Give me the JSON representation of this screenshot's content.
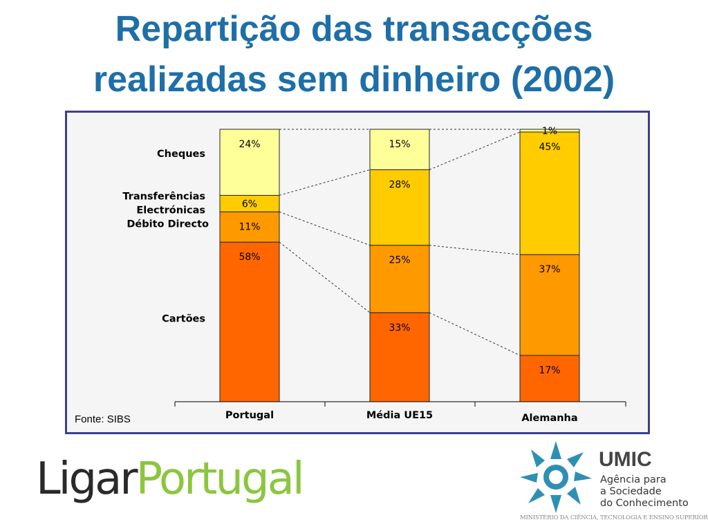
{
  "title": {
    "line1": "Repartição das transacções",
    "line2": "realizadas sem dinheiro (2002)"
  },
  "source": "Fonte: SIBS",
  "chart_data": {
    "type": "bar",
    "stacked": true,
    "normalized_percent": true,
    "categories": [
      "Portugal",
      "Média UE15",
      "Alemanha"
    ],
    "series": [
      {
        "name": "Cartões",
        "values": [
          58,
          33,
          17
        ],
        "labels": [
          "58%",
          "33%",
          "17%"
        ],
        "color": "#ff6600"
      },
      {
        "name": "Débito Directo",
        "values": [
          11,
          25,
          37
        ],
        "labels": [
          "11%",
          "25%",
          "37%"
        ],
        "color": "#ff9900"
      },
      {
        "name": "Transferências Electrónicas",
        "label_lines": [
          "Transferências",
          "Electrónicas"
        ],
        "values": [
          6,
          28,
          45
        ],
        "labels": [
          "6%",
          "28%",
          "45%"
        ],
        "color": "#ffcc00"
      },
      {
        "name": "Cheques",
        "values": [
          24,
          15,
          1
        ],
        "labels": [
          "24%",
          "15%",
          "1%"
        ],
        "color": "#ffff99"
      }
    ],
    "ylim": [
      0,
      100
    ],
    "connector_lines": "dashed",
    "legend_placement": "left"
  },
  "logos": {
    "ligar_part1": "Ligar",
    "ligar_part2": "Portugal",
    "umic_name": "UMIC",
    "umic_line1": "Agência para",
    "umic_line2": "a Sociedade",
    "umic_line3": "do Conhecimento",
    "ministerio": "MINISTÉRIO DA CIÊNCIA, TECNOLOGIA E ENSINO SUPERIOR"
  }
}
